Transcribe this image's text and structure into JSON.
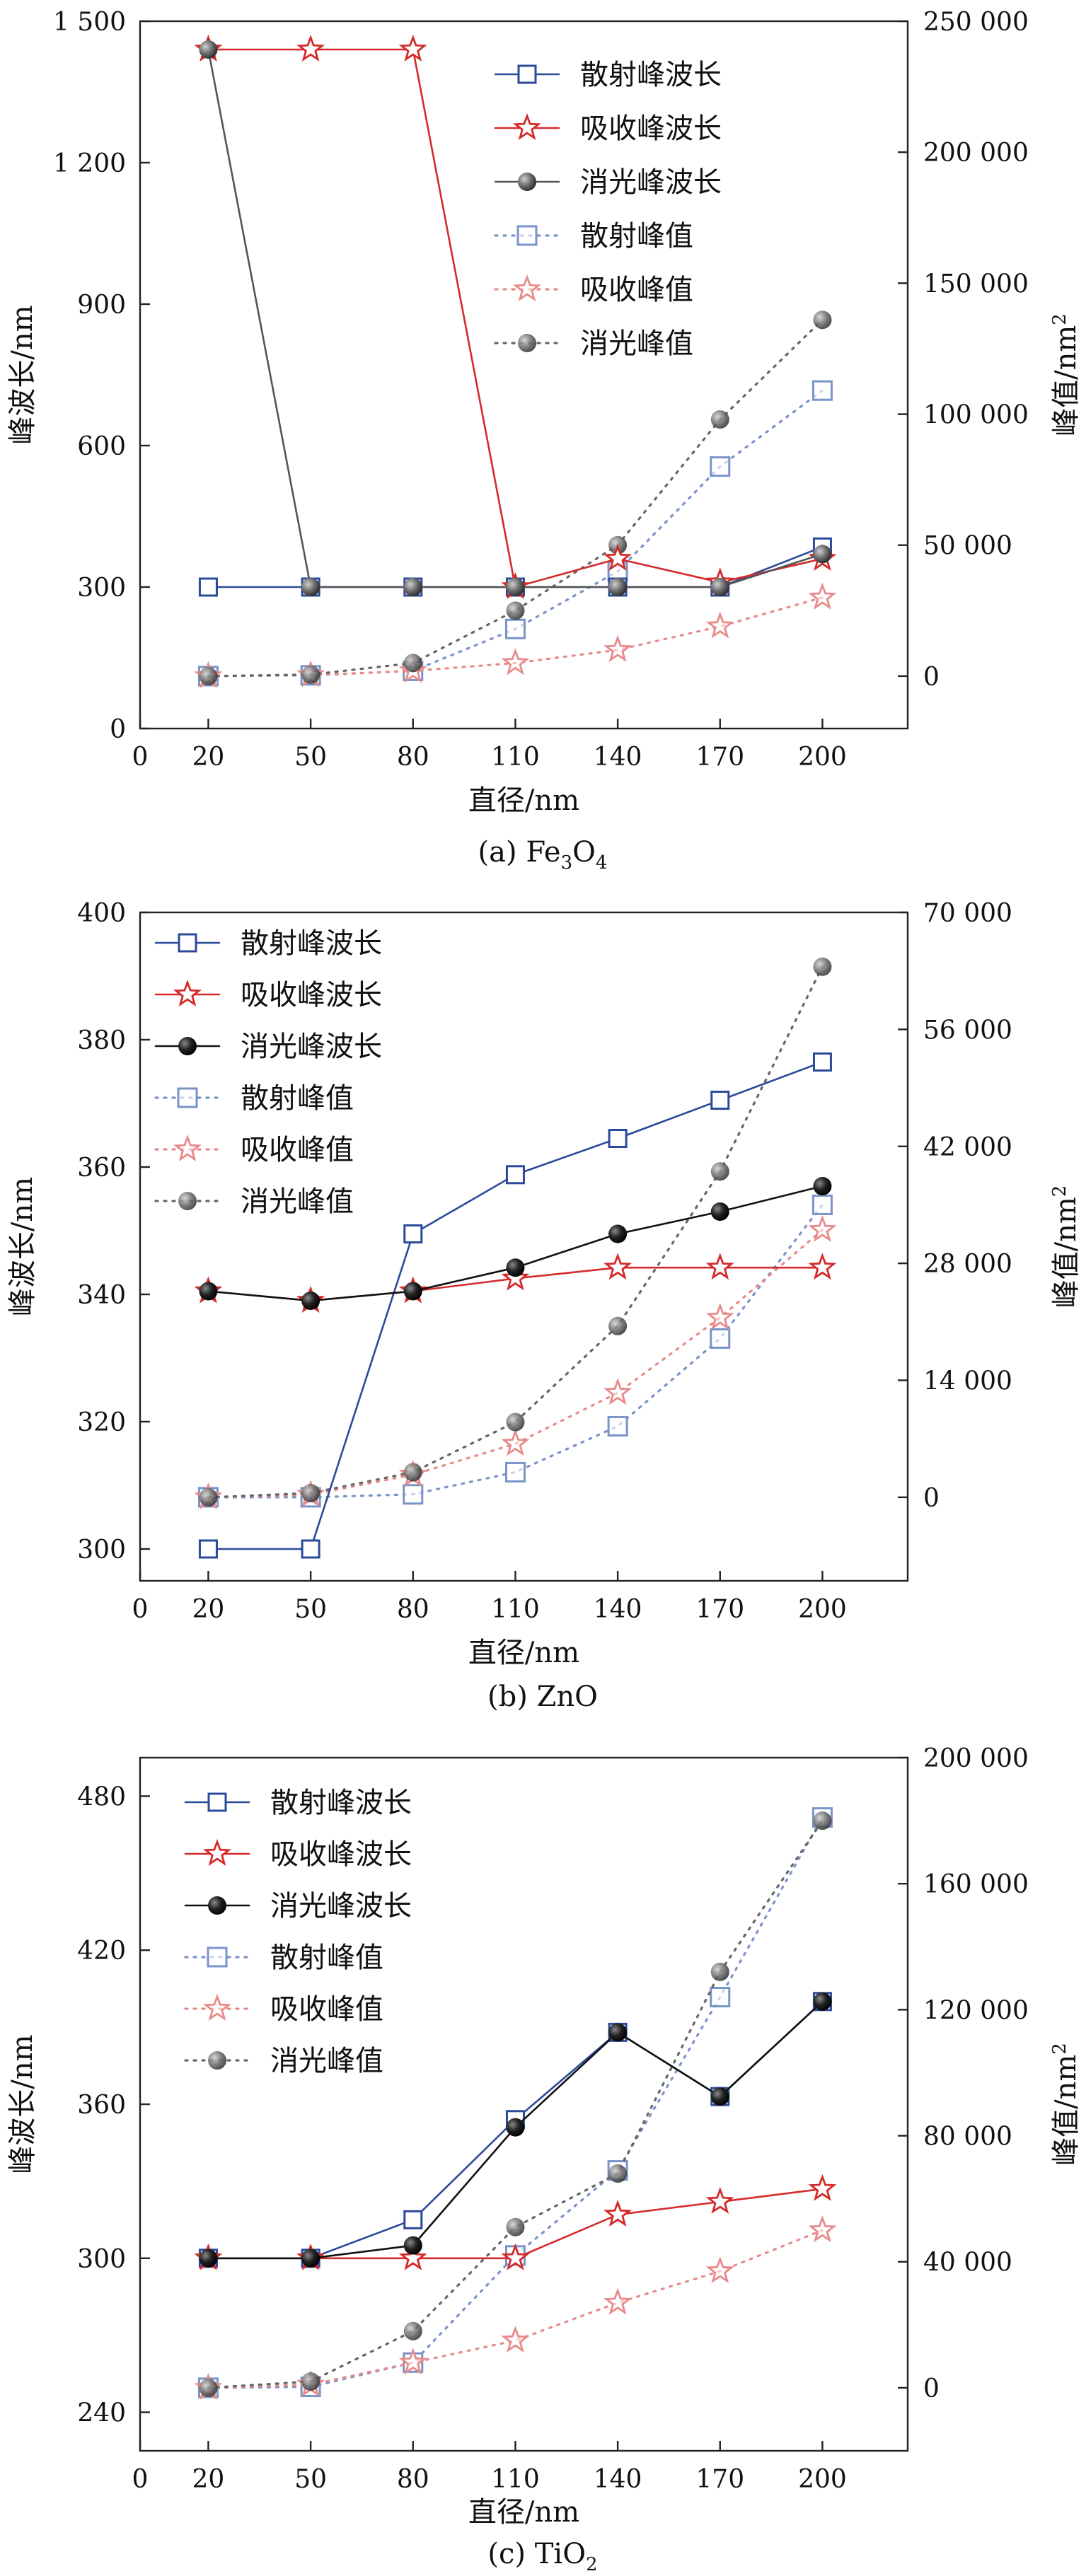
{
  "chart_data": [
    {
      "type": "line",
      "caption": "(a) Fe3O4",
      "caption_main": "(a) Fe",
      "caption_sub1": "3",
      "caption_mid": "O",
      "caption_sub2": "4",
      "xlabel": "直径/nm",
      "ylabel": "峰波长/nm",
      "y2label": "峰值/nm",
      "y2label_sup": "2",
      "x_ticks": [
        "0",
        "20",
        "50",
        "80",
        "110",
        "140",
        "170",
        "200"
      ],
      "x": [
        20,
        50,
        80,
        110,
        140,
        170,
        200
      ],
      "ylim": [
        0,
        1500
      ],
      "yticks": [
        0,
        300,
        600,
        900,
        1200,
        1500
      ],
      "ytick_labels": [
        "0",
        "300",
        "600",
        "900",
        "1 200",
        "1 500"
      ],
      "y2lim": [
        -20000,
        250000
      ],
      "y2ticks": [
        0,
        50000,
        100000,
        150000,
        200000,
        250000
      ],
      "y2tick_labels": [
        "0",
        "50 000",
        "100 000",
        "150 000",
        "200 000",
        "250 000"
      ],
      "legend_position": "top-right",
      "series": [
        {
          "name": "散射峰波长",
          "axis": "left",
          "style": "solid",
          "marker": "square",
          "color": "#2b4a9a",
          "values": [
            300,
            300,
            300,
            300,
            300,
            300,
            385
          ]
        },
        {
          "name": "吸收峰波长",
          "axis": "left",
          "style": "solid",
          "marker": "star",
          "color": "#d42a2a",
          "values": [
            1440,
            1440,
            1440,
            300,
            360,
            310,
            360
          ]
        },
        {
          "name": "消光峰波长",
          "axis": "left",
          "style": "solid",
          "marker": "ball",
          "color": "#555555",
          "values": [
            1440,
            300,
            300,
            300,
            300,
            300,
            370
          ]
        },
        {
          "name": "散射峰值",
          "axis": "right",
          "style": "dotted",
          "marker": "square",
          "color": "#7a93c9",
          "values": [
            0,
            300,
            2000,
            18000,
            40000,
            80000,
            109000
          ]
        },
        {
          "name": "吸收峰值",
          "axis": "right",
          "style": "dotted",
          "marker": "star",
          "color": "#e88a8a",
          "values": [
            0,
            400,
            2000,
            5000,
            10000,
            19000,
            30000
          ]
        },
        {
          "name": "消光峰值",
          "axis": "right",
          "style": "dotted",
          "marker": "ball",
          "color": "#666666",
          "values": [
            0,
            600,
            5000,
            25000,
            50000,
            98000,
            136000
          ]
        }
      ]
    },
    {
      "type": "line",
      "caption": "(b) ZnO",
      "caption_main": "(b) ZnO",
      "xlabel": "直径/nm",
      "ylabel": "峰波长/nm",
      "y2label": "峰值/nm",
      "y2label_sup": "2",
      "x_ticks": [
        "0",
        "20",
        "50",
        "80",
        "110",
        "140",
        "170",
        "200"
      ],
      "x": [
        20,
        50,
        80,
        110,
        140,
        170,
        200
      ],
      "ylim": [
        295,
        400
      ],
      "yticks": [
        300,
        320,
        340,
        360,
        380,
        400
      ],
      "ytick_labels": [
        "300",
        "320",
        "340",
        "360",
        "380",
        "400"
      ],
      "y2lim": [
        -10000,
        70000
      ],
      "y2ticks": [
        0,
        14000,
        28000,
        42000,
        56000,
        70000
      ],
      "y2tick_labels": [
        "0",
        "14 000",
        "28 000",
        "42 000",
        "56 000",
        "70 000"
      ],
      "legend_position": "top-left",
      "series": [
        {
          "name": "散射峰波长",
          "axis": "left",
          "style": "solid",
          "marker": "square",
          "color": "#2b4a9a",
          "values": [
            300,
            300,
            349.5,
            358.8,
            364.5,
            370.5,
            376.5
          ]
        },
        {
          "name": "吸收峰波长",
          "axis": "left",
          "style": "solid",
          "marker": "star",
          "color": "#d42a2a",
          "values": [
            340.5,
            339,
            340.5,
            342.5,
            344.2,
            344.2,
            344.2
          ]
        },
        {
          "name": "消光峰波长",
          "axis": "left",
          "style": "solid",
          "marker": "ball",
          "color": "#111111",
          "values": [
            340.5,
            339,
            340.5,
            344.2,
            349.5,
            353,
            357
          ]
        },
        {
          "name": "散射峰值",
          "axis": "right",
          "style": "dotted",
          "marker": "square",
          "color": "#7a93c9",
          "values": [
            0,
            0,
            350,
            3000,
            8500,
            19000,
            35000
          ]
        },
        {
          "name": "吸收峰值",
          "axis": "right",
          "style": "dotted",
          "marker": "star",
          "color": "#e88a8a",
          "values": [
            0,
            300,
            2700,
            6400,
            12500,
            21500,
            32000
          ]
        },
        {
          "name": "消光峰值",
          "axis": "right",
          "style": "dotted",
          "marker": "ball",
          "color": "#666666",
          "values": [
            0,
            500,
            3000,
            9000,
            20500,
            39000,
            63500
          ]
        }
      ]
    },
    {
      "type": "line",
      "caption": "(c) TiO2",
      "caption_main": "(c) TiO",
      "caption_sub": "2",
      "xlabel": "直径/nm",
      "ylabel": "峰波长/nm",
      "y2label": "峰值/nm",
      "y2label_sup": "2",
      "x_ticks": [
        "0",
        "20",
        "50",
        "80",
        "110",
        "140",
        "170",
        "200"
      ],
      "x": [
        20,
        50,
        80,
        110,
        140,
        170,
        200
      ],
      "ylim": [
        225,
        495
      ],
      "yticks": [
        240,
        300,
        360,
        420,
        480
      ],
      "ytick_labels": [
        "240",
        "300",
        "360",
        "420",
        "480"
      ],
      "y2lim": [
        -20000,
        200000
      ],
      "y2ticks": [
        0,
        40000,
        80000,
        120000,
        160000,
        200000
      ],
      "y2tick_labels": [
        "0",
        "40 000",
        "80 000",
        "120 000",
        "160 000",
        "200 000"
      ],
      "legend_position": "top-left",
      "series": [
        {
          "name": "散射峰波长",
          "axis": "left",
          "style": "solid",
          "marker": "square",
          "color": "#2b4a9a",
          "values": [
            300,
            300,
            315,
            354,
            388,
            363,
            400
          ]
        },
        {
          "name": "吸收峰波长",
          "axis": "left",
          "style": "solid",
          "marker": "star",
          "color": "#d42a2a",
          "values": [
            300,
            300,
            300,
            300,
            317,
            322,
            327
          ]
        },
        {
          "name": "消光峰波长",
          "axis": "left",
          "style": "solid",
          "marker": "ball",
          "color": "#111111",
          "values": [
            300,
            300,
            305,
            351,
            388,
            363,
            400
          ]
        },
        {
          "name": "散射峰值",
          "axis": "right",
          "style": "dotted",
          "marker": "square",
          "color": "#7a93c9",
          "values": [
            0,
            300,
            8000,
            42000,
            69000,
            124000,
            181000
          ]
        },
        {
          "name": "吸收峰值",
          "axis": "right",
          "style": "dotted",
          "marker": "star",
          "color": "#e88a8a",
          "values": [
            0,
            1000,
            8000,
            15000,
            27000,
            37000,
            50000
          ]
        },
        {
          "name": "消光峰值",
          "axis": "right",
          "style": "dotted",
          "marker": "ball",
          "color": "#666666",
          "values": [
            0,
            2000,
            18000,
            51000,
            68000,
            132000,
            180000
          ]
        }
      ]
    }
  ]
}
